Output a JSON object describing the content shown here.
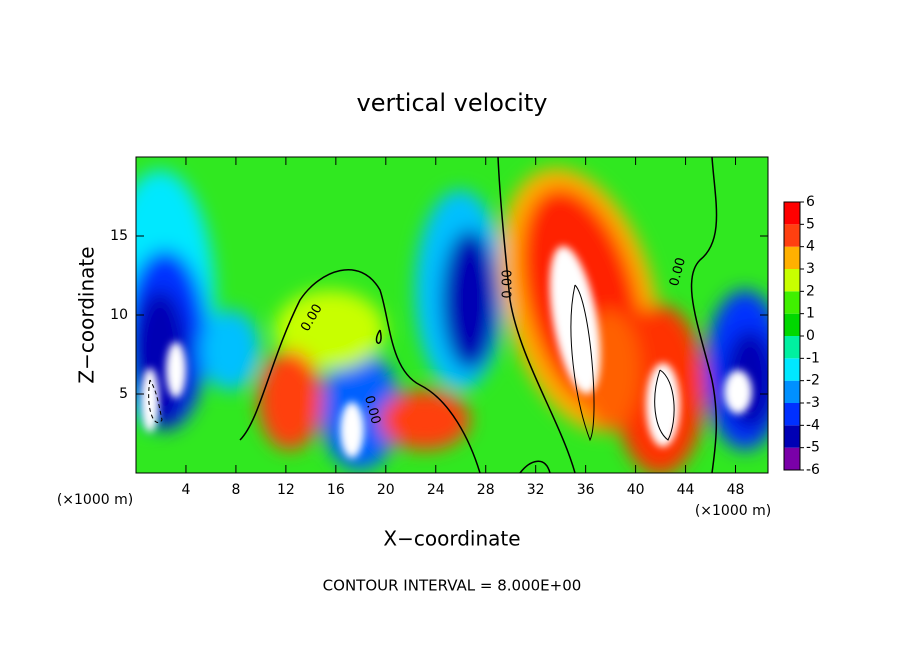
{
  "chart_data": {
    "type": "contour",
    "title": "vertical velocity",
    "xlabel": "X−coordinate",
    "ylabel": "Z−coordinate",
    "x_unit": "(×1000 m)",
    "annotation": "CONTOUR INTERVAL = 8.000E+00",
    "contour_labels": [
      "0.00",
      "0.00",
      "0.00",
      "0.00"
    ],
    "xlim": [
      0,
      50.6
    ],
    "xticks": [
      4,
      8,
      12,
      16,
      20,
      24,
      28,
      32,
      36,
      40,
      44,
      48
    ],
    "ylim": [
      0,
      20
    ],
    "yticks": [
      5,
      10,
      15
    ],
    "colorbar": {
      "ticks": [
        -6,
        -5,
        -4,
        -3,
        -2,
        -1,
        0,
        1,
        2,
        3,
        4,
        5,
        6
      ],
      "colors": [
        "#7a00a8",
        "#0000b4",
        "#0030ff",
        "#0090ff",
        "#00e8ff",
        "#00f0a0",
        "#00d800",
        "#40f000",
        "#c8ff00",
        "#ffb000",
        "#ff4010",
        "#ff0000"
      ]
    }
  }
}
